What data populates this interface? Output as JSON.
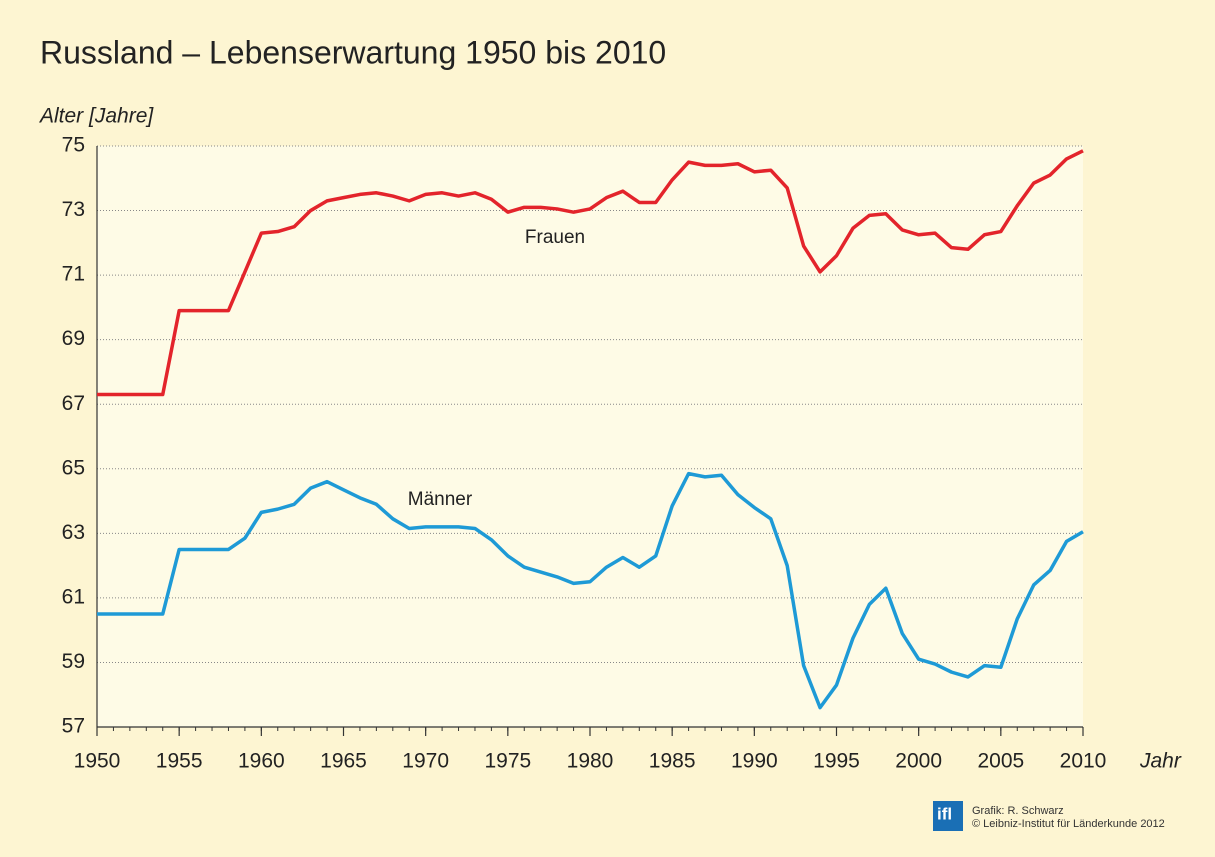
{
  "chart_data": {
    "type": "line",
    "title": "Russland – Lebenserwartung 1950 bis 2010",
    "ylabel": "Alter [Jahre]",
    "xlabel": "Jahr",
    "x": [
      1950,
      1951,
      1952,
      1953,
      1954,
      1955,
      1956,
      1957,
      1958,
      1959,
      1960,
      1961,
      1962,
      1963,
      1964,
      1965,
      1966,
      1967,
      1968,
      1969,
      1970,
      1971,
      1972,
      1973,
      1974,
      1975,
      1976,
      1977,
      1978,
      1979,
      1980,
      1981,
      1982,
      1983,
      1984,
      1985,
      1986,
      1987,
      1988,
      1989,
      1990,
      1991,
      1992,
      1993,
      1994,
      1995,
      1996,
      1997,
      1998,
      1999,
      2000,
      2001,
      2002,
      2003,
      2004,
      2005,
      2006,
      2007,
      2008,
      2009,
      2010
    ],
    "series": [
      {
        "name": "Frauen",
        "color": "#e3242b",
        "values": [
          67.3,
          67.3,
          67.3,
          67.3,
          67.3,
          69.9,
          69.9,
          69.9,
          69.9,
          71.1,
          72.3,
          72.35,
          72.5,
          73.0,
          73.3,
          73.4,
          73.5,
          73.55,
          73.45,
          73.3,
          73.5,
          73.55,
          73.45,
          73.55,
          73.35,
          72.95,
          73.1,
          73.1,
          73.05,
          72.95,
          73.05,
          73.4,
          73.6,
          73.25,
          73.25,
          73.95,
          74.5,
          74.4,
          74.4,
          74.45,
          74.2,
          74.25,
          73.7,
          71.9,
          71.1,
          71.6,
          72.45,
          72.85,
          72.9,
          72.4,
          72.25,
          72.3,
          71.85,
          71.8,
          72.25,
          72.35,
          73.15,
          73.85,
          74.1,
          74.6,
          74.85
        ]
      },
      {
        "name": "Männer",
        "color": "#1e9ad6",
        "values": [
          60.5,
          60.5,
          60.5,
          60.5,
          60.5,
          62.5,
          62.5,
          62.5,
          62.5,
          62.85,
          63.65,
          63.75,
          63.9,
          64.4,
          64.6,
          64.35,
          64.1,
          63.9,
          63.45,
          63.15,
          63.2,
          63.2,
          63.2,
          63.15,
          62.8,
          62.3,
          61.95,
          61.8,
          61.65,
          61.45,
          61.5,
          61.95,
          62.25,
          61.95,
          62.3,
          63.85,
          64.85,
          64.75,
          64.8,
          64.2,
          63.8,
          63.45,
          62.0,
          58.9,
          57.6,
          58.3,
          59.75,
          60.8,
          61.3,
          59.9,
          59.1,
          58.95,
          58.7,
          58.55,
          58.9,
          58.85,
          60.35,
          61.4,
          61.85,
          62.75,
          63.05
        ]
      }
    ],
    "xlim": [
      1950,
      2010
    ],
    "xticks": [
      1950,
      1955,
      1960,
      1965,
      1970,
      1975,
      1980,
      1985,
      1990,
      1995,
      2000,
      2005,
      2010
    ],
    "ylim": [
      57,
      75
    ],
    "yticks": [
      57,
      59,
      61,
      63,
      65,
      67,
      69,
      71,
      73,
      75
    ],
    "grid": true,
    "credits": {
      "logo": "ifl",
      "author": "Grafik: R. Schwarz",
      "copyright": "© Leibniz-Institut für Länderkunde 2012"
    }
  }
}
